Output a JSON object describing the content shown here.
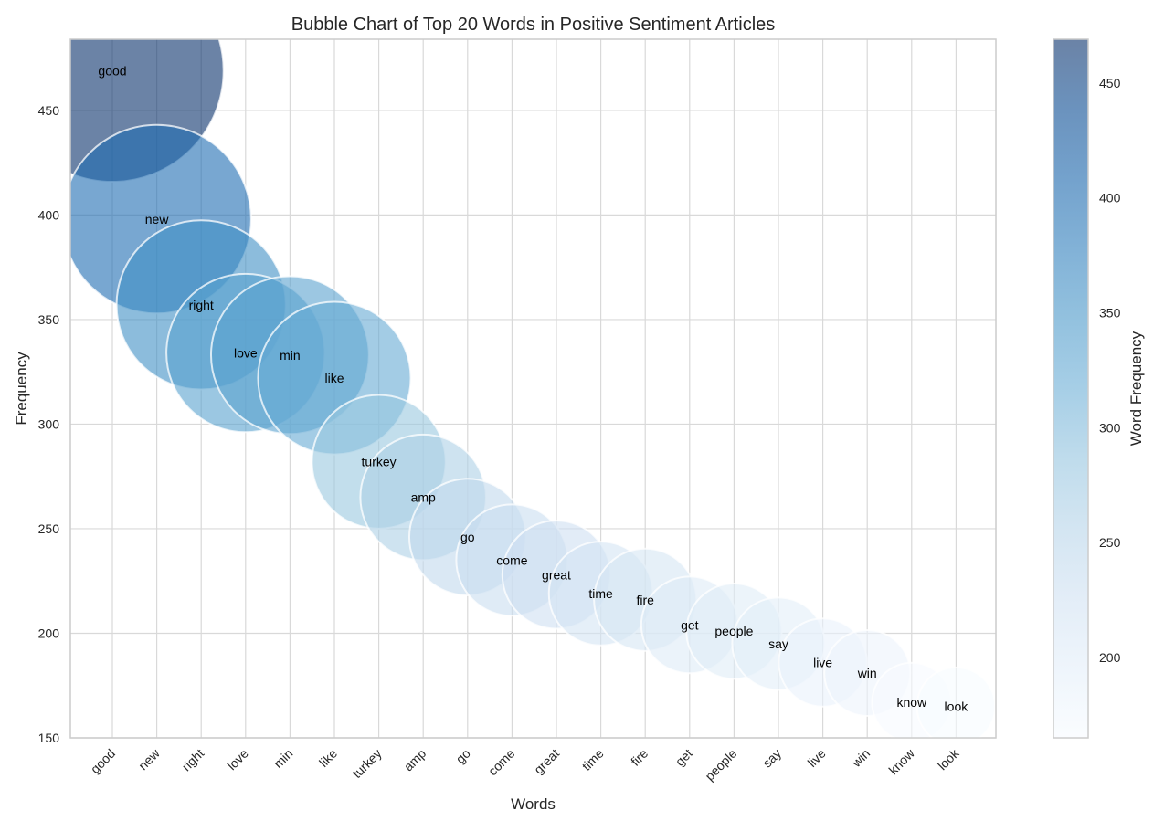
{
  "chart_data": {
    "type": "scatter",
    "variant": "bubble",
    "title": "Bubble Chart of Top 20 Words in Positive Sentiment Articles",
    "xlabel": "Words",
    "ylabel": "Frequency",
    "categories": [
      "good",
      "new",
      "right",
      "love",
      "min",
      "like",
      "turkey",
      "amp",
      "go",
      "come",
      "great",
      "time",
      "fire",
      "get",
      "people",
      "say",
      "live",
      "win",
      "know",
      "look"
    ],
    "values": [
      469,
      398,
      357,
      334,
      333,
      322,
      282,
      265,
      246,
      235,
      228,
      219,
      216,
      204,
      201,
      195,
      186,
      181,
      167,
      165
    ],
    "ylim": [
      150,
      484
    ],
    "yticks": [
      150,
      200,
      250,
      300,
      350,
      400,
      450
    ],
    "grid": true,
    "legend": "none",
    "colorbar": {
      "label": "Word Frequency",
      "range": [
        165,
        469
      ],
      "ticks": [
        200,
        250,
        300,
        350,
        400,
        450
      ],
      "colormap": "Blues",
      "placement": "right"
    },
    "marker_alpha": 0.6,
    "marker_edge_color": "#ffffff"
  }
}
